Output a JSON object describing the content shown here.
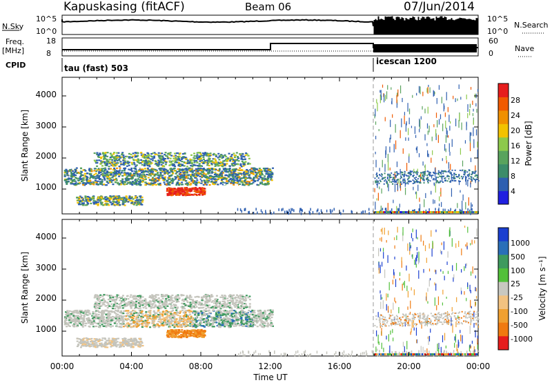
{
  "header": {
    "station": "Kapuskasing (fitACF)",
    "beam": "Beam 06",
    "date": "07/Jun/2014"
  },
  "strips": {
    "nsky_label": "N.Sky",
    "nsky_ticks": [
      "10^5",
      "10^0"
    ],
    "nsearch_label": "N.Search",
    "nsearch_ticks": [
      "10^5",
      "10^0"
    ],
    "freq_label_1": "Freq.",
    "freq_label_2": "[MHz]",
    "freq_ticks": [
      "18",
      "8"
    ],
    "nave_label": "Nave",
    "nave_ticks": [
      "60",
      "0"
    ],
    "cpid_label": "CPID",
    "cpid_entries": [
      {
        "name": "tau (fast) 503",
        "start_hour": 0
      },
      {
        "name": "icescan 1200",
        "start_hour": 18
      }
    ]
  },
  "colors": {
    "power_scale": [
      "#2020e0",
      "#2e5fb0",
      "#3c8c6a",
      "#59a35d",
      "#8dc94b",
      "#f2c200",
      "#f09000",
      "#f05a00",
      "#e61d1d"
    ],
    "velocity_scale": [
      "#1a3fd0",
      "#2a6fb8",
      "#3e9a5e",
      "#52c03a",
      "#c8c8c0",
      "#f2c280",
      "#f0a030",
      "#f07a10",
      "#e61d1d"
    ],
    "gray": "#c4c4bc"
  },
  "chart_data": [
    {
      "type": "heatmap",
      "panel": "power",
      "ylabel": "Slant Range [km]",
      "xlabel": "",
      "xlim_hours": [
        0,
        24
      ],
      "ylim": [
        200,
        4600
      ],
      "yticks": [
        "1000",
        "2000",
        "3000",
        "4000"
      ],
      "xticks": [
        "00:00",
        "04:00",
        "08:00",
        "12:00",
        "16:00",
        "20:00",
        "00:00"
      ],
      "colorbar_label": "Power [dB]",
      "colorbar_ticks": [
        "4",
        "8",
        "12",
        "16",
        "20",
        "24",
        "28"
      ],
      "mode_change_hour": 18,
      "echo_regions": [
        {
          "t0": 0.3,
          "t1": 12.0,
          "r0": 1100,
          "r1": 1750,
          "level": 2
        },
        {
          "t0": 2.0,
          "t1": 11.0,
          "r0": 1750,
          "r1": 2200,
          "level": 3
        },
        {
          "t0": 0.8,
          "t1": 4.5,
          "r0": 500,
          "r1": 800,
          "level": 3
        },
        {
          "t0": 6.0,
          "t1": 8.0,
          "r0": 800,
          "r1": 1000,
          "level": 7
        },
        {
          "t0": 18.0,
          "t1": 24.0,
          "r0": 1200,
          "r1": 1600,
          "level": 1
        }
      ]
    },
    {
      "type": "heatmap",
      "panel": "velocity",
      "ylabel": "Slant Range [km]",
      "xlabel": "Time UT",
      "xlim_hours": [
        0,
        24
      ],
      "ylim": [
        200,
        4600
      ],
      "yticks": [
        "1000",
        "2000",
        "3000",
        "4000"
      ],
      "xticks": [
        "00:00",
        "04:00",
        "08:00",
        "12:00",
        "16:00",
        "20:00",
        "00:00"
      ],
      "colorbar_label": "Velocity [m s⁻¹]",
      "colorbar_ticks": [
        "1000",
        "500",
        "100",
        "25",
        "-25",
        "-100",
        "-500",
        "-1000"
      ],
      "mode_change_hour": 18
    }
  ]
}
